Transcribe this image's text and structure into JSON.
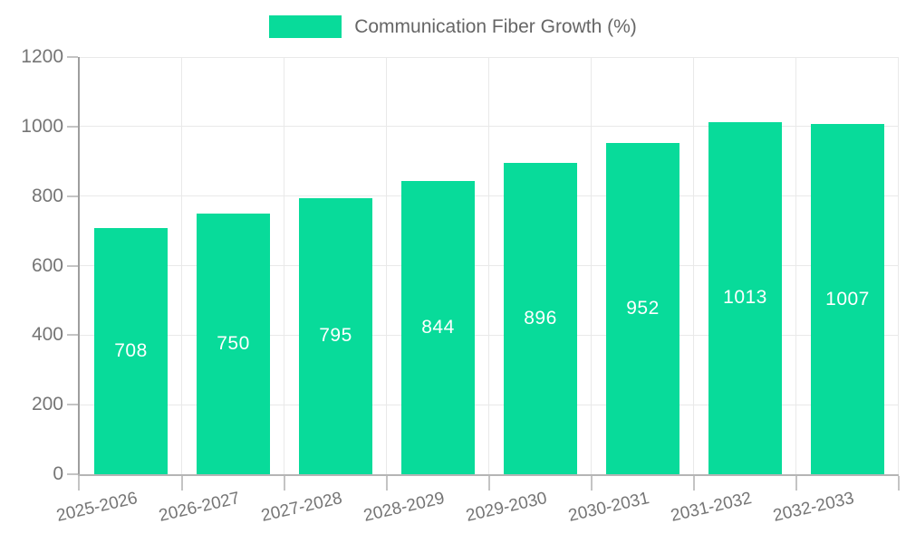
{
  "chart_data": {
    "type": "bar",
    "title": "Communication Fiber Growth (%)",
    "categories": [
      "2025-2026",
      "2026-2027",
      "2027-2028",
      "2028-2029",
      "2029-2030",
      "2030-2031",
      "2031-2032",
      "2032-2033"
    ],
    "series": [
      {
        "name": "Communication Fiber Growth (%)",
        "values": [
          708,
          750,
          795,
          844,
          896,
          952,
          1013,
          1007
        ]
      }
    ],
    "xlabel": "",
    "ylabel": "",
    "ylim": [
      0,
      1200
    ],
    "yticks": [
      0,
      200,
      400,
      600,
      800,
      1000,
      1200
    ],
    "grid": true,
    "legend_position": "top",
    "colors": {
      "bar": "#08db9a",
      "bar_value_text": "#ffffff",
      "axis_text": "#757575",
      "legend_text": "#666666",
      "gridline": "#e9e9e9",
      "axis_line": "#9e9e9e"
    }
  }
}
